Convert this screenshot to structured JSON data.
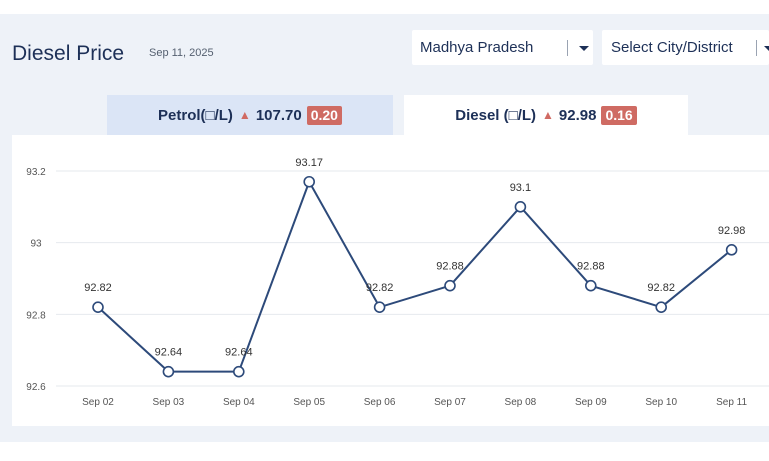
{
  "header": {
    "title": "Diesel Price",
    "date": "Sep 11, 2025"
  },
  "filters": {
    "state": "Madhya Pradesh",
    "city": "Select City/District"
  },
  "tabs": [
    {
      "label": "Petrol(□/L)",
      "price": "107.70",
      "change": "0.20",
      "active": false
    },
    {
      "label": "Diesel (□/L)",
      "price": "92.98",
      "change": "0.16",
      "active": true
    }
  ],
  "colors": {
    "accent": "#1d3057",
    "increase_badge": "#cf6b63",
    "active_tab": "#ffffff",
    "inactive_tab": "#dbe5f6"
  },
  "chart_data": {
    "type": "line",
    "categories": [
      "Sep 02",
      "Sep 03",
      "Sep 04",
      "Sep 05",
      "Sep 06",
      "Sep 07",
      "Sep 08",
      "Sep 09",
      "Sep 10",
      "Sep 11"
    ],
    "values": [
      92.82,
      92.64,
      92.64,
      93.17,
      92.82,
      92.88,
      93.1,
      92.88,
      92.82,
      92.98
    ],
    "data_labels": [
      "92.82",
      "92.64",
      "92.64",
      "93.17",
      "92.82",
      "92.88",
      "93.1",
      "92.88",
      "92.82",
      "92.98"
    ],
    "yticks": [
      92.6,
      92.8,
      93,
      93.2
    ],
    "ytick_labels": [
      "92.6",
      "92.8",
      "93",
      "93.2"
    ],
    "ylim": [
      92.6,
      93.2
    ],
    "grid": true,
    "line_color": "#2d4a7a"
  }
}
